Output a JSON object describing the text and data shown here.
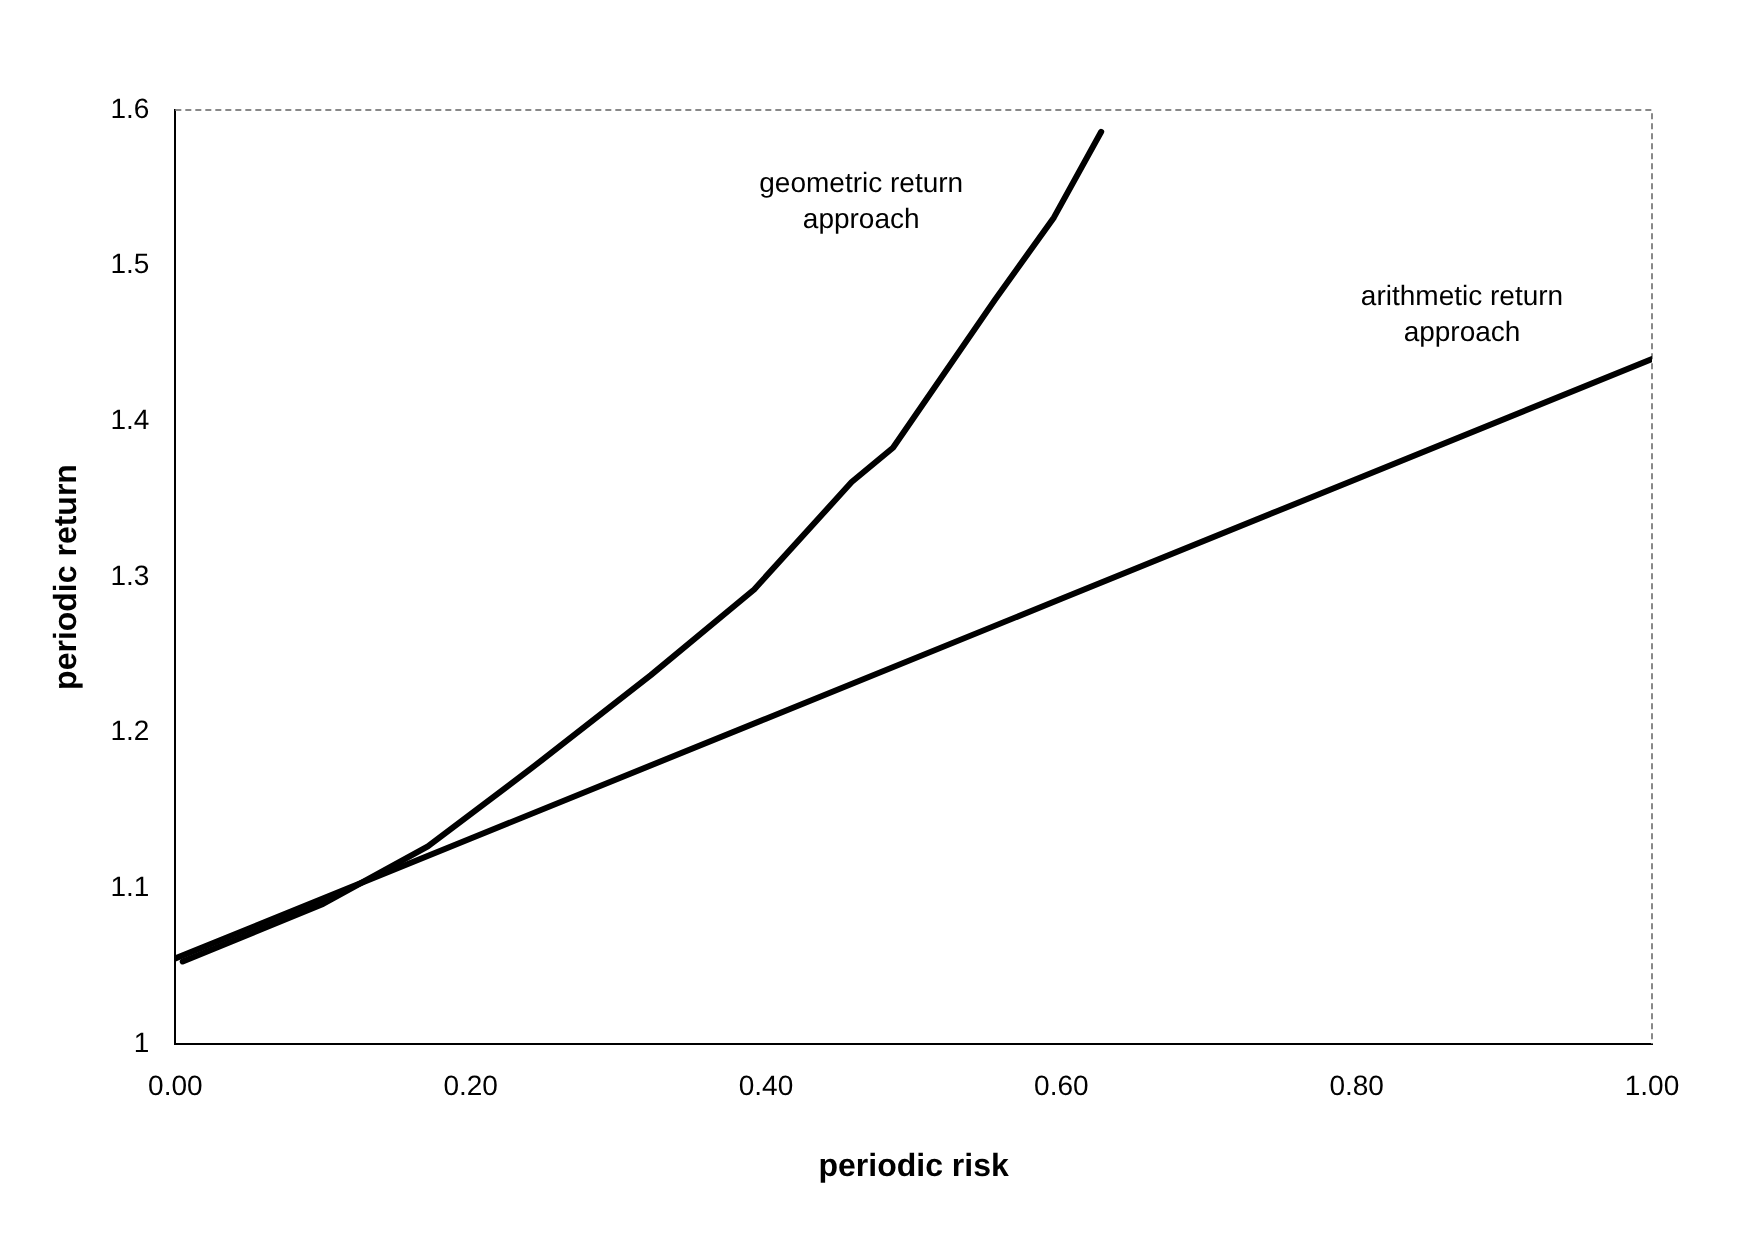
{
  "chart_data": {
    "type": "line",
    "xlabel": "periodic risk",
    "ylabel": "periodic return",
    "series": [
      {
        "name": "geometric return approach",
        "color": "#000000",
        "x": [
          0.005,
          0.1,
          0.171,
          0.241,
          0.322,
          0.392,
          0.458,
          0.486,
          0.555,
          0.595,
          0.627
        ],
        "values": [
          1.053,
          1.09,
          1.127,
          1.177,
          1.237,
          1.292,
          1.361,
          1.383,
          1.478,
          1.531,
          1.586
        ]
      },
      {
        "name": "arithmetic return approach",
        "color": "#000000",
        "x": [
          0,
          0.2,
          0.4,
          0.6,
          0.8,
          1
        ],
        "values": [
          1.055,
          1.132,
          1.209,
          1.286,
          1.363,
          1.44
        ]
      }
    ],
    "xlim": [
      0,
      1
    ],
    "ylim": [
      1,
      1.6
    ],
    "xticks": [
      {
        "value": 0,
        "label": "0.00"
      },
      {
        "value": 0.2,
        "label": "0.20"
      },
      {
        "value": 0.4,
        "label": "0.40"
      },
      {
        "value": 0.6,
        "label": "0.60"
      },
      {
        "value": 0.8,
        "label": "0.80"
      },
      {
        "value": 1,
        "label": "1.00"
      }
    ],
    "yticks": [
      1,
      1.1,
      1.2,
      1.3,
      1.4,
      1.5,
      1.6
    ],
    "grid": false,
    "legend": false,
    "marker": "none",
    "line_style": "solid"
  }
}
